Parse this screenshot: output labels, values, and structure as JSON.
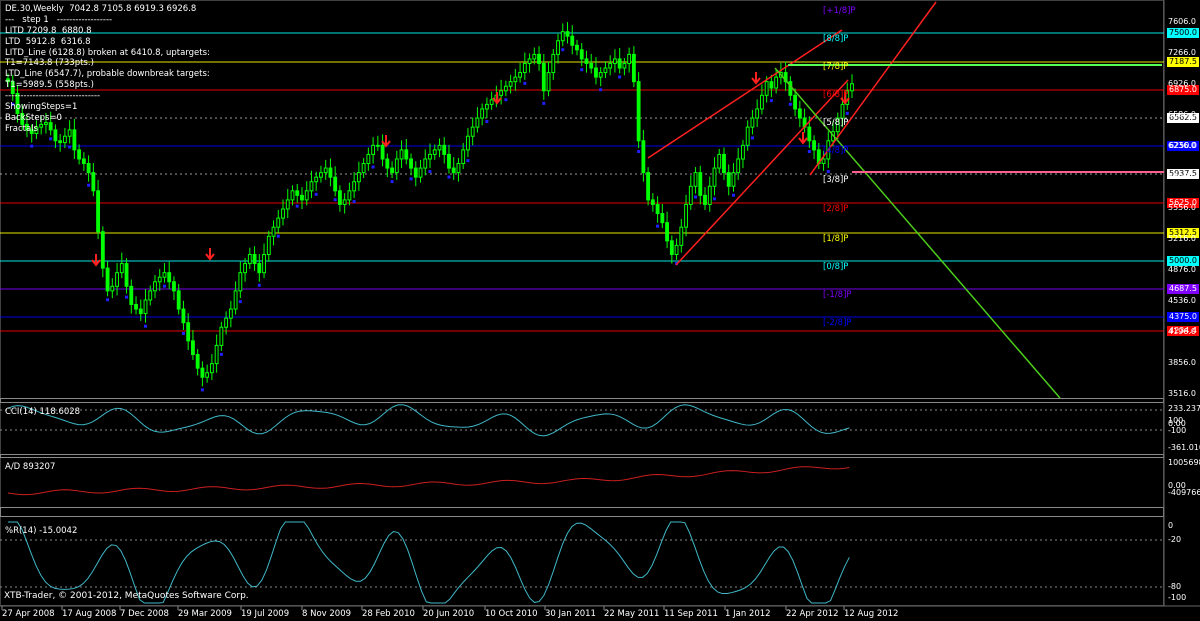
{
  "info_lines": [
    "DE.30,Weekly  7042.8 7105.8 6919.3 6926.8",
    "---   step 1   ------------------",
    "LITD 7209.8  6880.8",
    "LTD  5912.8  6316.8",
    "LITD_Line (6128.8) broken at 6410.8, uptargets:",
    "T1=7143.8 (733pts.)",
    "LTD_Line (6547.7), probable downbreak targets:",
    "T1=5989.5 (558pts.)",
    "-------------------------------",
    "ShowingSteps=1",
    "BackSteps=0",
    "Fractals"
  ],
  "indicators": {
    "cci": "CCI(14) 118.6028",
    "ad": "A/D 893207",
    "wpr": "%R(14) -15.0042"
  },
  "copyright": "XTB-Trader, © 2001-2012, MetaQuotes Software Corp.",
  "colors": {
    "background": "#000000",
    "candle_bull": "#00ff00",
    "grid": "#c0c0c0",
    "indicator_line": "#3fb8c8",
    "ad_line": "#cc1f1f",
    "channel": "#ff2020",
    "trend": "#4ccd1b",
    "fractal_up": "#ff0000",
    "fractal_down": "#2020ff"
  },
  "chart_data": [
    {
      "type": "candlestick",
      "symbol": "DE.30",
      "timeframe": "Weekly",
      "ohlc": {
        "open": 7042.8,
        "high": 7105.8,
        "low": 6919.3,
        "close": 6926.8
      },
      "x_ticks": [
        "27 Apr 2008",
        "17 Aug 2008",
        "7 Dec 2008",
        "29 Mar 2009",
        "19 Jul 2009",
        "8 Nov 2009",
        "28 Feb 2010",
        "20 Jun 2010",
        "10 Oct 2010",
        "30 Jan 2011",
        "22 May 2011",
        "11 Sep 2011",
        "1 Jan 2012",
        "22 Apr 2012",
        "12 Aug 2012"
      ],
      "y_ticks": [
        "7606.0",
        "7266.0",
        "6926.0",
        "6586.0",
        "6236.0",
        "5896.0",
        "5556.0",
        "5216.0",
        "4876.0",
        "4536.0",
        "4196.0",
        "3856.0",
        "3516.0"
      ],
      "price_levels": [
        {
          "label": "7187.5",
          "bg": "#ffff00",
          "fg": "#000"
        },
        {
          "label": "7500.0",
          "bg": "#00ffff",
          "fg": "#000"
        },
        {
          "label": "6875.0",
          "bg": "#ff0000",
          "fg": "#fff"
        },
        {
          "label": "6562.5",
          "bg": "#ffffff",
          "fg": "#000"
        },
        {
          "label": "6250.0",
          "bg": "#0000ff",
          "fg": "#fff"
        },
        {
          "label": "5937.5",
          "bg": "#ffffff",
          "fg": "#000"
        },
        {
          "label": "5625.0",
          "bg": "#ff0000",
          "fg": "#fff"
        },
        {
          "label": "5312.5",
          "bg": "#ffff00",
          "fg": "#000"
        },
        {
          "label": "5000.0",
          "bg": "#00ffff",
          "fg": "#000"
        },
        {
          "label": "4687.5",
          "bg": "#8000ff",
          "fg": "#fff"
        },
        {
          "label": "4375.0",
          "bg": "#0000ff",
          "fg": "#fff"
        },
        {
          "label": "4234.4",
          "bg": "#ff0000",
          "fg": "#fff"
        }
      ],
      "murrey_labels": [
        {
          "label": "[+1/8]P",
          "color": "#8000ff"
        },
        {
          "label": "[8/8]P",
          "color": "#00ffff"
        },
        {
          "label": "[7/8]P",
          "color": "#ffff00"
        },
        {
          "label": "[6/8]P",
          "color": "#ff0000"
        },
        {
          "label": "[5/8]P",
          "color": "#ffffff"
        },
        {
          "label": "[4/8]P",
          "color": "#0000ff"
        },
        {
          "label": "[3/8]P",
          "color": "#ffffff"
        },
        {
          "label": "[2/8]P",
          "color": "#ff0000"
        },
        {
          "label": "[1/8]P",
          "color": "#ffff00"
        },
        {
          "label": "[0/8]P",
          "color": "#00ffff"
        },
        {
          "label": "[-1/8]P",
          "color": "#8000ff"
        },
        {
          "label": "[-2/8]P",
          "color": "#0000ff"
        }
      ],
      "close_series": [
        6950,
        6820,
        6600,
        6480,
        6420,
        6380,
        6450,
        6480,
        6500,
        6420,
        6300,
        6280,
        6350,
        6420,
        6200,
        6100,
        6050,
        5950,
        5750,
        5300,
        4900,
        4650,
        4700,
        4850,
        4950,
        4700,
        4500,
        4450,
        4400,
        4550,
        4650,
        4750,
        4800,
        4850,
        4750,
        4650,
        4450,
        4300,
        4100,
        3950,
        3800,
        3700,
        3750,
        3850,
        4050,
        4250,
        4350,
        4450,
        4650,
        4850,
        4950,
        5050,
        4950,
        4850,
        5050,
        5250,
        5350,
        5450,
        5550,
        5650,
        5750,
        5700,
        5650,
        5750,
        5850,
        5900,
        5950,
        6000,
        5900,
        5750,
        5600,
        5650,
        5750,
        5850,
        5950,
        6050,
        6150,
        6250,
        6250,
        6100,
        6000,
        5950,
        6100,
        6200,
        6100,
        6000,
        5900,
        6000,
        6100,
        6150,
        6200,
        6250,
        6150,
        6000,
        5950,
        6050,
        6200,
        6350,
        6450,
        6550,
        6650,
        6700,
        6750,
        6800,
        6850,
        6900,
        6950,
        7000,
        7050,
        7150,
        7200,
        7250,
        7150,
        6850,
        7050,
        7250,
        7400,
        7500,
        7450,
        7350,
        7300,
        7200,
        7150,
        7100,
        7000,
        7050,
        7100,
        7150,
        7200,
        7100,
        7150,
        7250,
        6950,
        6300,
        5950,
        5650,
        5600,
        5500,
        5400,
        5200,
        5050,
        5150,
        5350,
        5600,
        5800,
        5950,
        5700,
        5600,
        5800,
        6000,
        6150,
        5950,
        5800,
        5950,
        6100,
        6250,
        6450,
        6550,
        6650,
        6800,
        6950,
        6880,
        7000,
        7050,
        6950,
        6800,
        6650,
        6550,
        6450,
        6300,
        6200,
        6050,
        6100,
        6300,
        6400,
        6550,
        6700,
        6850,
        6926.8
      ],
      "overlays": {
        "channel_lines": 3,
        "trend_line": "green descending",
        "fractals": "up/down markers"
      },
      "indicator_panels": [
        {
          "name": "CCI(14)",
          "value": 118.6028,
          "scale_labels": [
            "233.2377",
            "100",
            "0.00",
            "-100",
            "-361.010"
          ]
        },
        {
          "name": "A/D",
          "value": 893207,
          "scale_labels": [
            "1005698",
            "0.00",
            "-409766"
          ]
        },
        {
          "name": "%R(14)",
          "value": -15.0042,
          "scale_labels": [
            "0",
            "-20",
            "-80",
            "-100"
          ]
        }
      ]
    }
  ]
}
